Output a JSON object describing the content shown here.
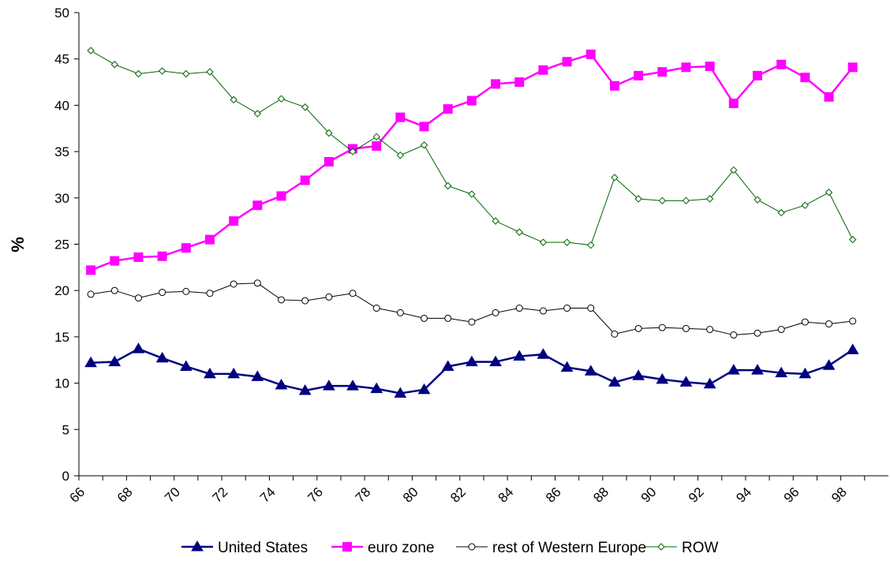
{
  "chart_data": {
    "type": "line",
    "title": "",
    "xlabel": "",
    "ylabel": "%",
    "ylim": [
      0,
      50
    ],
    "yticks": [
      0,
      5,
      10,
      15,
      20,
      25,
      30,
      35,
      40,
      45,
      50
    ],
    "xtick_labels": [
      "66",
      "68",
      "70",
      "72",
      "74",
      "76",
      "78",
      "80",
      "82",
      "84",
      "86",
      "88",
      "90",
      "92",
      "94",
      "96",
      "98"
    ],
    "x": [
      1966,
      1967,
      1968,
      1969,
      1970,
      1971,
      1972,
      1973,
      1974,
      1975,
      1976,
      1977,
      1978,
      1979,
      1980,
      1981,
      1982,
      1983,
      1984,
      1985,
      1986,
      1987,
      1988,
      1989,
      1990,
      1991,
      1992,
      1993,
      1994,
      1995,
      1996,
      1997,
      1998
    ],
    "grid": false,
    "legend_position": "bottom",
    "series": [
      {
        "name": "United States",
        "color": "#000080",
        "marker": "triangle",
        "values": [
          12.2,
          12.3,
          13.7,
          12.7,
          11.8,
          11.0,
          11.0,
          10.7,
          9.8,
          9.2,
          9.7,
          9.7,
          9.4,
          8.9,
          9.3,
          11.8,
          12.3,
          12.3,
          12.9,
          13.1,
          11.7,
          11.3,
          10.1,
          10.8,
          10.4,
          10.1,
          9.9,
          11.4,
          11.4,
          11.1,
          11.0,
          11.9,
          13.6
        ]
      },
      {
        "name": "euro zone",
        "color": "#FF00FF",
        "marker": "square",
        "values": [
          22.2,
          23.2,
          23.6,
          23.7,
          24.6,
          25.5,
          27.5,
          29.2,
          30.2,
          31.9,
          33.9,
          35.3,
          35.6,
          38.7,
          37.7,
          39.6,
          40.5,
          42.3,
          42.5,
          43.8,
          44.7,
          45.5,
          42.1,
          43.2,
          43.6,
          44.1,
          44.2,
          40.2,
          43.2,
          44.4,
          43.0,
          40.9,
          44.1
        ]
      },
      {
        "name": "rest of Western Europe",
        "color": "#000000",
        "marker": "circle",
        "values": [
          19.6,
          20.0,
          19.2,
          19.8,
          19.9,
          19.7,
          20.7,
          20.8,
          19.0,
          18.9,
          19.3,
          19.7,
          18.1,
          17.6,
          17.0,
          17.0,
          16.6,
          17.6,
          18.1,
          17.8,
          18.1,
          18.1,
          15.3,
          15.9,
          16.0,
          15.9,
          15.8,
          15.2,
          15.4,
          15.8,
          16.6,
          16.4,
          16.7
        ]
      },
      {
        "name": "ROW",
        "color": "#006400",
        "marker": "diamond",
        "values": [
          45.9,
          44.4,
          43.4,
          43.7,
          43.4,
          43.6,
          40.6,
          39.1,
          40.7,
          39.8,
          37.0,
          35.0,
          36.6,
          34.6,
          35.7,
          31.3,
          30.4,
          27.5,
          26.3,
          25.2,
          25.2,
          24.9,
          32.2,
          29.9,
          29.7,
          29.7,
          29.9,
          33.0,
          29.8,
          28.4,
          29.2,
          30.6,
          25.5
        ]
      }
    ]
  }
}
